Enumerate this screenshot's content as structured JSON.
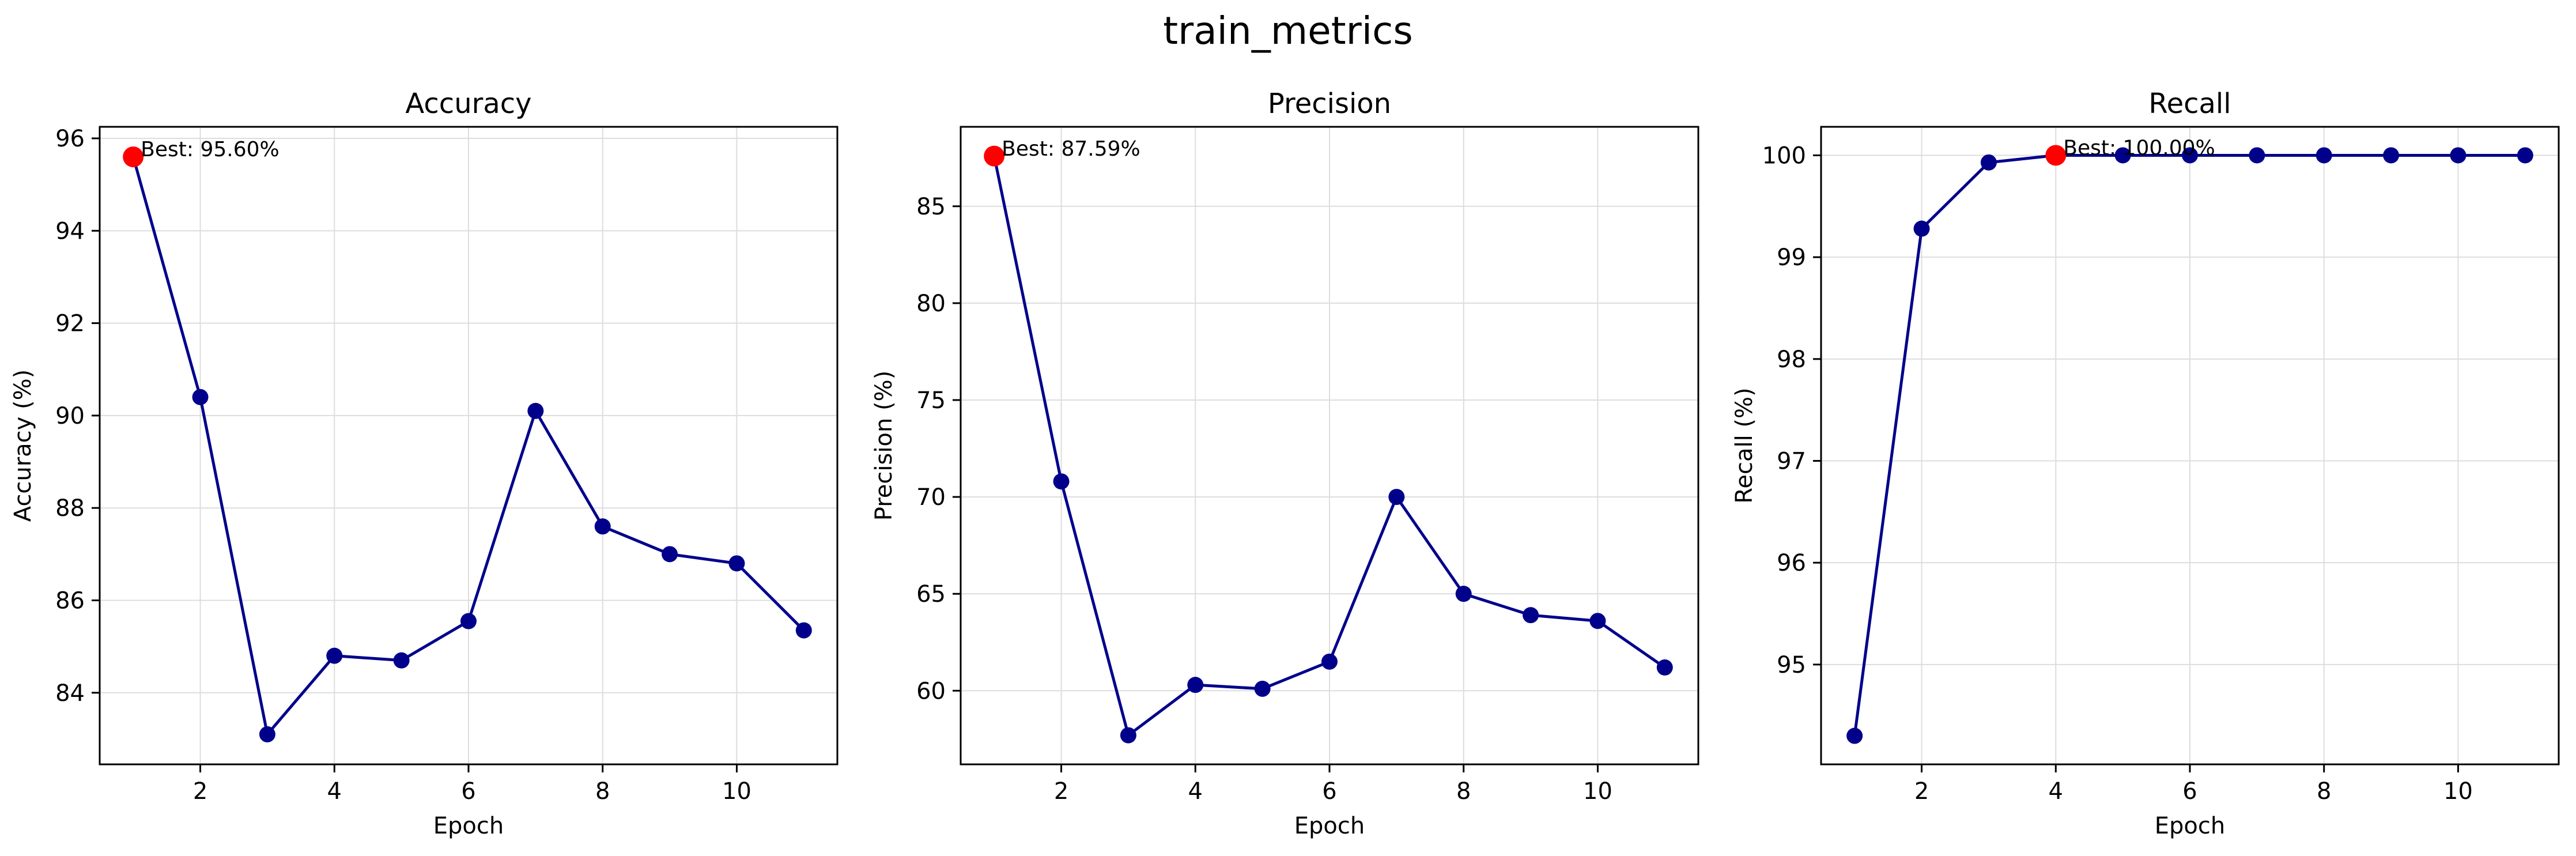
{
  "figure": {
    "title": "train_metrics"
  },
  "chart_data": [
    {
      "type": "line",
      "title": "Accuracy",
      "xlabel": "Epoch",
      "ylabel": "Accuracy (%)",
      "x": [
        1,
        2,
        3,
        4,
        5,
        6,
        7,
        8,
        9,
        10,
        11
      ],
      "values": [
        95.6,
        90.4,
        83.1,
        84.8,
        84.7,
        85.55,
        90.1,
        87.6,
        87.0,
        86.8,
        85.35
      ],
      "xlim": [
        0.5,
        11.5
      ],
      "ylim": [
        82.45,
        96.25
      ],
      "xticks": [
        2,
        4,
        6,
        8,
        10
      ],
      "yticks": [
        84,
        86,
        88,
        90,
        92,
        94,
        96
      ],
      "best": {
        "x": 1,
        "y": 95.6,
        "label": "Best: 95.60%"
      },
      "grid": true,
      "line_color": "#00008b",
      "best_color": "#ff0000"
    },
    {
      "type": "line",
      "title": "Precision",
      "xlabel": "Epoch",
      "ylabel": "Precision (%)",
      "x": [
        1,
        2,
        3,
        4,
        5,
        6,
        7,
        8,
        9,
        10,
        11
      ],
      "values": [
        87.59,
        70.8,
        57.7,
        60.3,
        60.1,
        61.5,
        70.0,
        65.0,
        63.9,
        63.6,
        61.2
      ],
      "xlim": [
        0.5,
        11.5
      ],
      "ylim": [
        56.2,
        89.1
      ],
      "xticks": [
        2,
        4,
        6,
        8,
        10
      ],
      "yticks": [
        60,
        65,
        70,
        75,
        80,
        85
      ],
      "best": {
        "x": 1,
        "y": 87.59,
        "label": "Best: 87.59%"
      },
      "grid": true,
      "line_color": "#00008b",
      "best_color": "#ff0000"
    },
    {
      "type": "line",
      "title": "Recall",
      "xlabel": "Epoch",
      "ylabel": "Recall (%)",
      "x": [
        1,
        2,
        3,
        4,
        5,
        6,
        7,
        8,
        9,
        10,
        11
      ],
      "values": [
        94.3,
        99.28,
        99.93,
        100.0,
        100.0,
        100.0,
        100.0,
        100.0,
        100.0,
        100.0,
        100.0
      ],
      "xlim": [
        0.5,
        11.5
      ],
      "ylim": [
        94.02,
        100.28
      ],
      "xticks": [
        2,
        4,
        6,
        8,
        10
      ],
      "yticks": [
        95,
        96,
        97,
        98,
        99,
        100
      ],
      "best": {
        "x": 4,
        "y": 100.0,
        "label": "Best: 100.00%"
      },
      "grid": true,
      "line_color": "#00008b",
      "best_color": "#ff0000"
    }
  ]
}
